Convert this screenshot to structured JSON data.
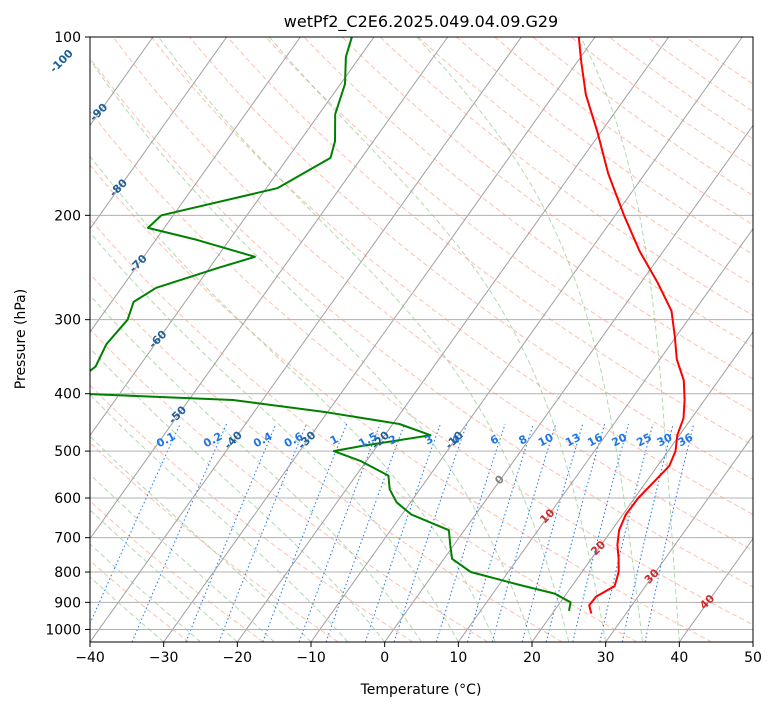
{
  "chart_data": {
    "type": "line",
    "title": "wetPf2_C2E6.2025.049.04.09.G29",
    "xlabel": "Temperature (°C)",
    "ylabel": "Pressure (hPa)",
    "xlim": [
      -40,
      50
    ],
    "ylim": [
      1050,
      100
    ],
    "y_scale": "log",
    "skew": true,
    "grid": true,
    "x_ticks": [
      "−40",
      "−30",
      "−20",
      "−10",
      "0",
      "10",
      "20",
      "30",
      "40",
      "50"
    ],
    "y_ticks": [
      {
        "p": 100,
        "label": "100"
      },
      {
        "p": 200,
        "label": "200"
      },
      {
        "p": 300,
        "label": "300"
      },
      {
        "p": 400,
        "label": "400"
      },
      {
        "p": 500,
        "label": "500"
      },
      {
        "p": 600,
        "label": "600"
      },
      {
        "p": 700,
        "label": "700"
      },
      {
        "p": 800,
        "label": "800"
      },
      {
        "p": 900,
        "label": "900"
      },
      {
        "p": 1000,
        "label": "1000"
      }
    ],
    "series": [
      {
        "color": "#ff0000",
        "points": [
          [
            940,
            25.3
          ],
          [
            910,
            24.2
          ],
          [
            880,
            24.3
          ],
          [
            845,
            25.8
          ],
          [
            800,
            25.0
          ],
          [
            760,
            23.7
          ],
          [
            720,
            22.2
          ],
          [
            680,
            21.0
          ],
          [
            640,
            20.4
          ],
          [
            600,
            20.5
          ],
          [
            560,
            21.1
          ],
          [
            530,
            21.6
          ],
          [
            500,
            21.0
          ],
          [
            470,
            19.7
          ],
          [
            440,
            18.9
          ],
          [
            410,
            17.3
          ],
          [
            380,
            15.3
          ],
          [
            350,
            12.3
          ],
          [
            320,
            9.8
          ],
          [
            290,
            6.9
          ],
          [
            260,
            2.3
          ],
          [
            230,
            -3.2
          ],
          [
            200,
            -8.8
          ],
          [
            170,
            -15.0
          ],
          [
            145,
            -20.4
          ],
          [
            125,
            -25.7
          ],
          [
            110,
            -29.5
          ],
          [
            100,
            -32.2
          ]
        ]
      },
      {
        "color": "#008000",
        "points": [
          [
            930,
            22.0
          ],
          [
            900,
            21.4
          ],
          [
            870,
            18.4
          ],
          [
            840,
            12.6
          ],
          [
            800,
            4.9
          ],
          [
            760,
            1.1
          ],
          [
            720,
            -0.5
          ],
          [
            680,
            -2.1
          ],
          [
            640,
            -8.7
          ],
          [
            610,
            -11.9
          ],
          [
            580,
            -14.1
          ],
          [
            550,
            -15.6
          ],
          [
            520,
            -20.7
          ],
          [
            500,
            -25.4
          ],
          [
            490,
            -22.0
          ],
          [
            470,
            -13.8
          ],
          [
            450,
            -19.1
          ],
          [
            430,
            -30.1
          ],
          [
            410,
            -44.0
          ],
          [
            400,
            -65.4
          ],
          [
            385,
            -67.3
          ],
          [
            360,
            -65.9
          ],
          [
            330,
            -66.6
          ],
          [
            300,
            -66.1
          ],
          [
            280,
            -67.0
          ],
          [
            265,
            -65.3
          ],
          [
            245,
            -58.7
          ],
          [
            235,
            -54.9
          ],
          [
            220,
            -64.4
          ],
          [
            210,
            -72.2
          ],
          [
            200,
            -71.6
          ],
          [
            180,
            -58.5
          ],
          [
            160,
            -54.2
          ],
          [
            150,
            -55.2
          ],
          [
            135,
            -57.8
          ],
          [
            120,
            -59.4
          ],
          [
            108,
            -61.9
          ],
          [
            100,
            -63.0
          ]
        ]
      }
    ],
    "isotherm_labels": [
      "-100",
      "-90",
      "-80",
      "-70",
      "-60",
      "-50",
      "-40",
      "-30",
      "-20",
      "-10",
      "0",
      "10",
      "20",
      "30",
      "40"
    ],
    "mixing_ratio_labels": [
      "0.1",
      "0.2",
      "0.4",
      "0.6",
      "1",
      "1.5",
      "2",
      "3",
      "4",
      "6",
      "8",
      "10",
      "13",
      "16",
      "20",
      "25",
      "30",
      "36"
    ],
    "colors": {
      "isotherm_cold_label": "#1f5f9a",
      "isotherm_zero_label": "#808080",
      "isotherm_warm_label": "#d62728",
      "mixing_ratio": "#1f77e4",
      "dry_adiabat": "#ff8c69",
      "moist_adiabat": "#7fbf7f",
      "skewed_isotherm": "#a0a0a0",
      "isobar": "#b0b0b0"
    }
  }
}
